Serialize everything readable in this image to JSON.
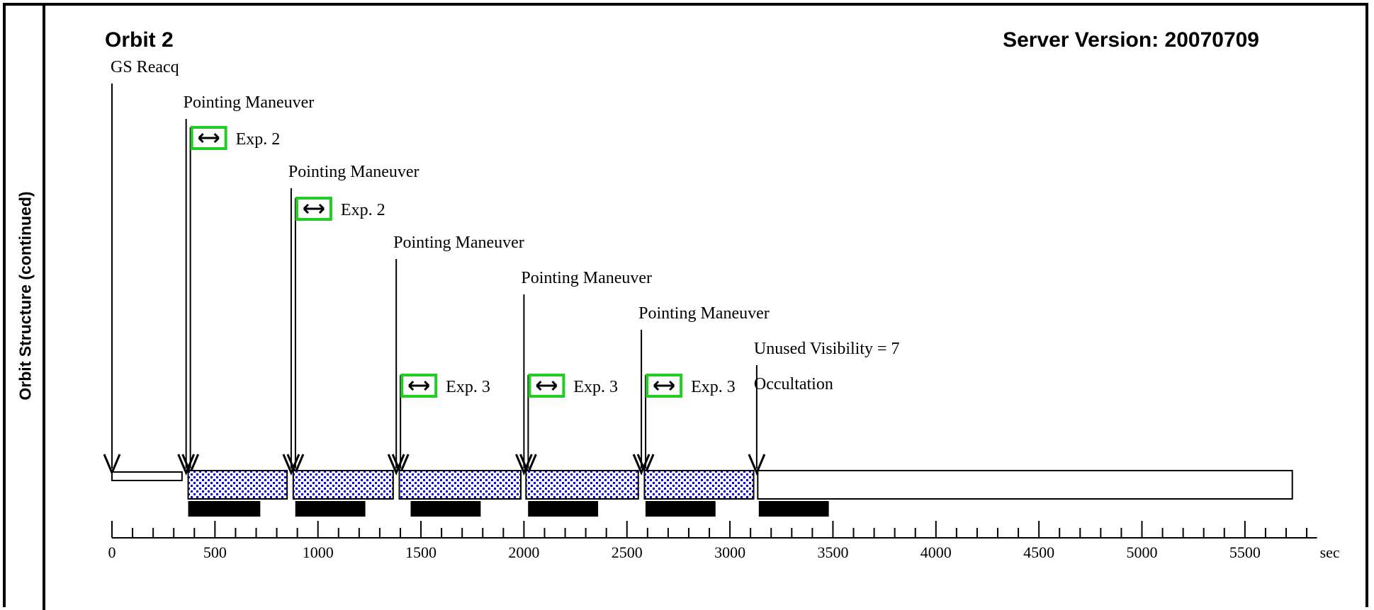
{
  "sidebar_label": "Orbit Structure (continued)",
  "title": "Orbit 2",
  "server_version": "Server Version: 20070709",
  "axis": {
    "min": 0,
    "max": 5850,
    "major": [
      0,
      500,
      1000,
      1500,
      2000,
      2500,
      3000,
      3500,
      4000,
      4500,
      5000,
      5500
    ],
    "minor_step": 100,
    "unit": "sec"
  },
  "events": [
    {
      "label": "GS Reacq",
      "t": 0
    },
    {
      "label": "Pointing Maneuver",
      "t": 360
    },
    {
      "label": "Pointing Maneuver",
      "t": 870
    },
    {
      "label": "Pointing Maneuver",
      "t": 1380
    },
    {
      "label": "Pointing Maneuver",
      "t": 2000
    },
    {
      "label": "Pointing Maneuver",
      "t": 2570
    },
    {
      "label": "Unused Visibility = 7",
      "t": 3130
    },
    {
      "label": "Occultation",
      "t": 3130
    }
  ],
  "exposures": [
    {
      "label": "Exp. 2",
      "t": 360
    },
    {
      "label": "Exp. 2",
      "t": 870
    },
    {
      "label": "Exp. 3",
      "t": 1380
    },
    {
      "label": "Exp. 3",
      "t": 2000
    },
    {
      "label": "Exp. 3",
      "t": 2570
    }
  ],
  "timeline_blocks": [
    {
      "start": 0,
      "end": 340,
      "type": "plain"
    },
    {
      "start": 370,
      "end": 850,
      "type": "dotted"
    },
    {
      "start": 880,
      "end": 1365,
      "type": "dotted"
    },
    {
      "start": 1395,
      "end": 1985,
      "type": "dotted"
    },
    {
      "start": 2010,
      "end": 2555,
      "type": "dotted"
    },
    {
      "start": 2585,
      "end": 3115,
      "type": "dotted"
    },
    {
      "start": 3135,
      "end": 5730,
      "type": "plain"
    }
  ],
  "black_bars": [
    {
      "start": 370,
      "end": 720
    },
    {
      "start": 890,
      "end": 1230
    },
    {
      "start": 1450,
      "end": 1790
    },
    {
      "start": 2020,
      "end": 2360
    },
    {
      "start": 2590,
      "end": 2930
    },
    {
      "start": 3140,
      "end": 3480
    }
  ],
  "colors": {
    "dot": "#0000ee",
    "exposure_box": "#22cc22",
    "line": "#000000"
  }
}
